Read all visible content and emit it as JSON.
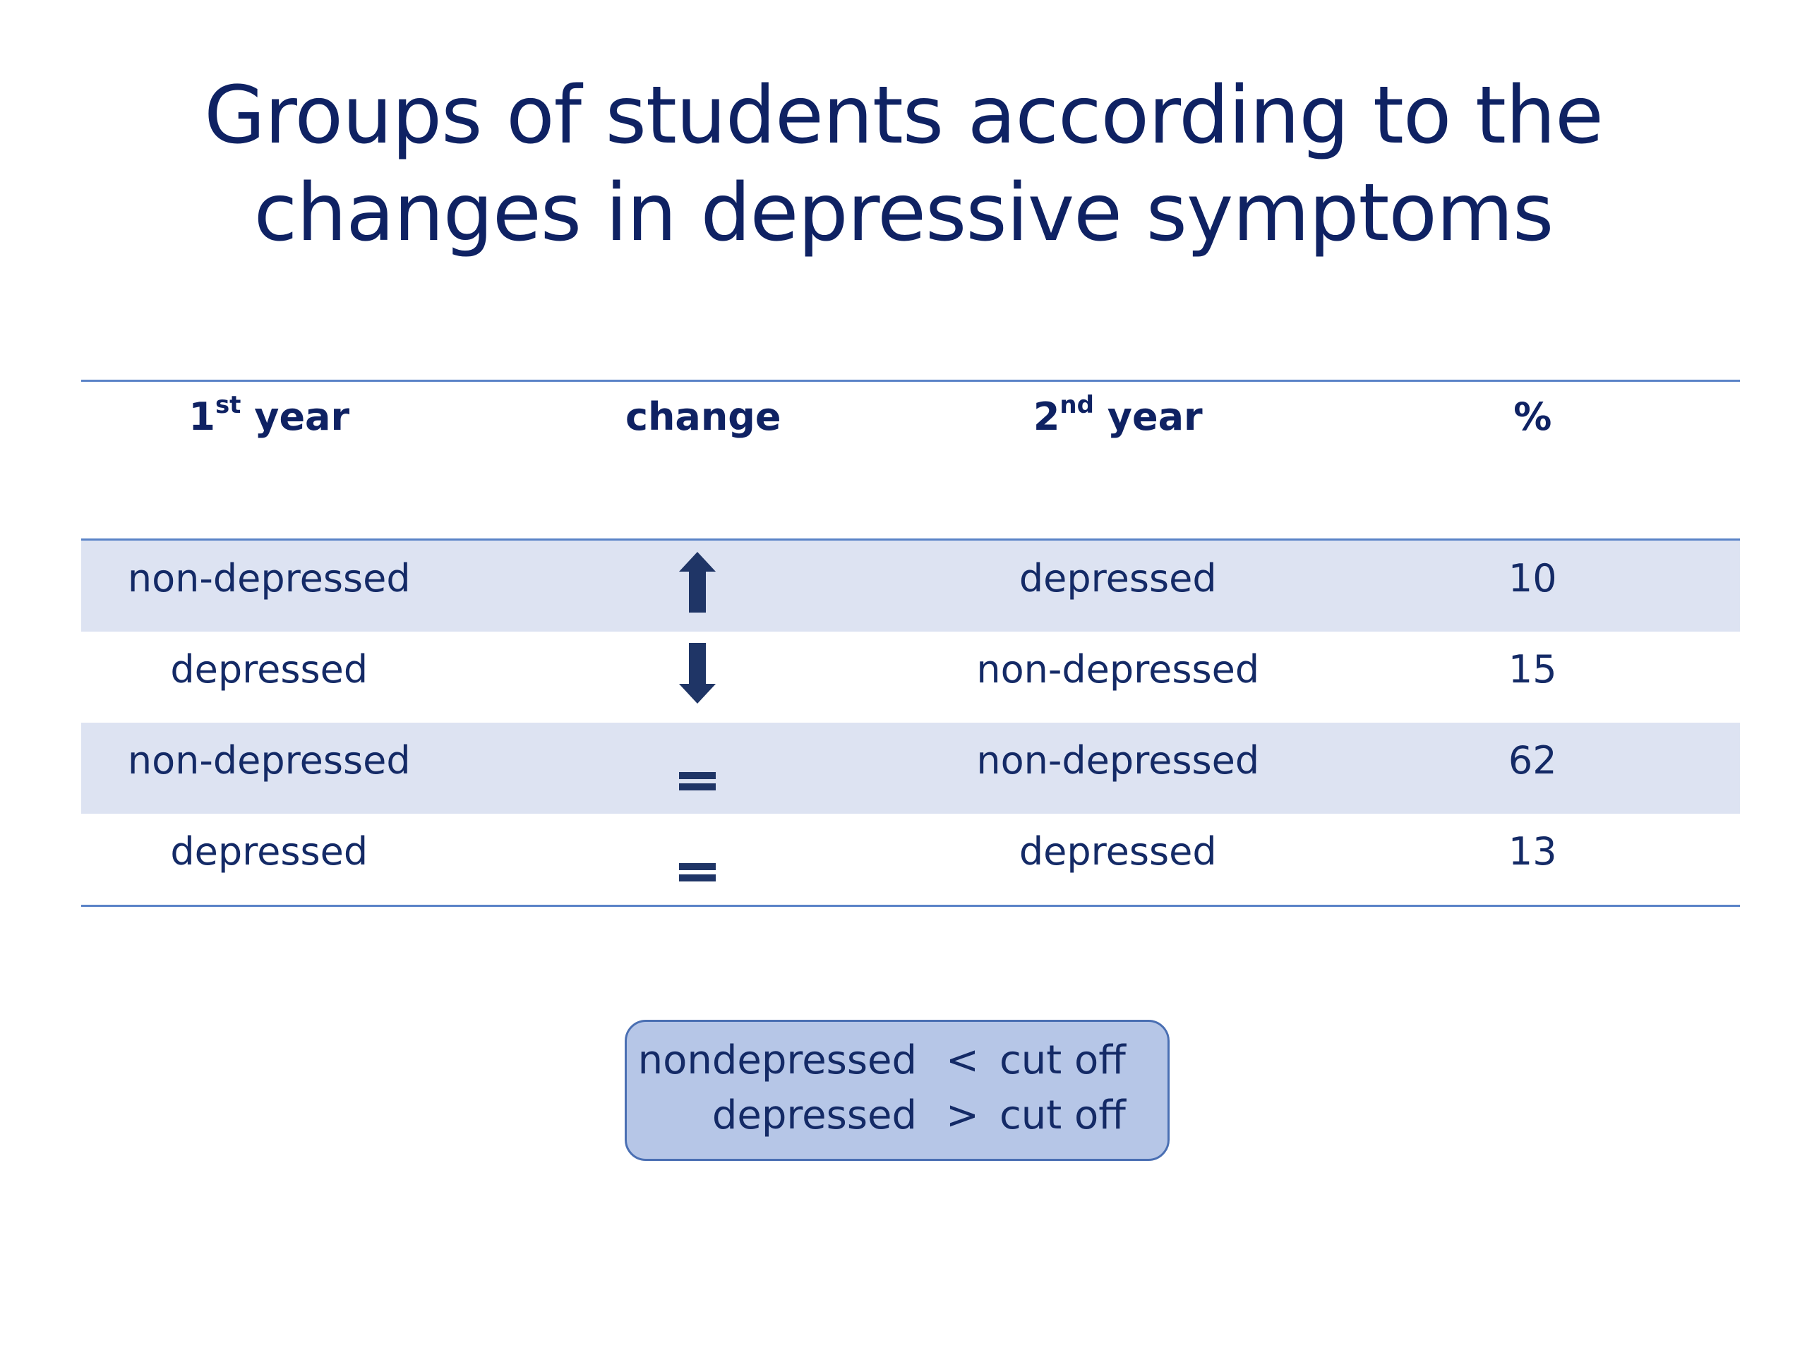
{
  "title": {
    "line1": "Groups of students according to the",
    "line2": "changes in depressive symptoms"
  },
  "table": {
    "headers": [
      {
        "main": "1",
        "sup": "st",
        "rest": " year"
      },
      {
        "main": "change",
        "sup": "",
        "rest": ""
      },
      {
        "main": "2",
        "sup": "nd",
        "rest": " year"
      },
      {
        "main": "%",
        "sup": "",
        "rest": ""
      }
    ],
    "rows": [
      {
        "first_year": "non-depressed",
        "change_icon": "arrow-up-icon",
        "second_year": "depressed",
        "percent": "10"
      },
      {
        "first_year": "depressed",
        "change_icon": "arrow-down-icon",
        "second_year": "non-depressed",
        "percent": "15"
      },
      {
        "first_year": "non-depressed",
        "change_icon": "equals-icon",
        "second_year": "non-depressed",
        "percent": "62"
      },
      {
        "first_year": "depressed",
        "change_icon": "equals-icon",
        "second_year": "depressed",
        "percent": "13"
      }
    ]
  },
  "legend": {
    "line1": {
      "term": "nondepressed",
      "op": "<",
      "cut": "cut off"
    },
    "line2": {
      "term": "depressed",
      "op": ">",
      "cut": "cut off"
    }
  },
  "colors": {
    "title": "#0f2263",
    "text": "#142a66",
    "rule": "#5a83c7",
    "row_shade": "#dde3f2",
    "legend_fill": "#b6c6e7",
    "legend_border": "#4a6fb3",
    "icon": "#1f3566"
  }
}
